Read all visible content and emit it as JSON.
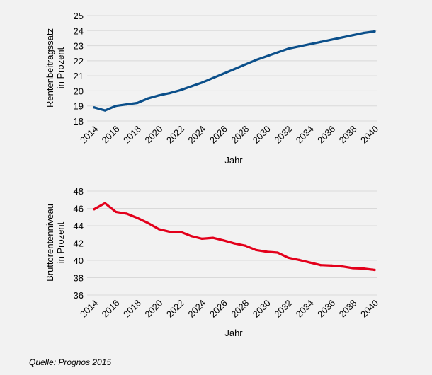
{
  "chart_data": [
    {
      "type": "line",
      "title": "",
      "xlabel": "Jahr",
      "ylabel": [
        "Rentenbeitragssatz",
        "in Prozent"
      ],
      "ylim": [
        18,
        25
      ],
      "yticks": [
        18,
        19,
        20,
        21,
        22,
        23,
        24,
        25
      ],
      "xticks": [
        2014,
        2016,
        2018,
        2020,
        2022,
        2024,
        2026,
        2028,
        2030,
        2032,
        2034,
        2036,
        2038,
        2040
      ],
      "grid": true,
      "color": "#0b4f8a",
      "x": [
        2014,
        2015,
        2016,
        2017,
        2018,
        2019,
        2020,
        2021,
        2022,
        2023,
        2024,
        2025,
        2026,
        2027,
        2028,
        2029,
        2030,
        2031,
        2032,
        2033,
        2034,
        2035,
        2036,
        2037,
        2038,
        2039,
        2040
      ],
      "values": [
        18.9,
        18.7,
        19.0,
        19.1,
        19.2,
        19.5,
        19.7,
        19.85,
        20.05,
        20.3,
        20.55,
        20.85,
        21.15,
        21.45,
        21.75,
        22.05,
        22.3,
        22.55,
        22.8,
        22.95,
        23.1,
        23.25,
        23.4,
        23.55,
        23.7,
        23.85,
        23.95
      ]
    },
    {
      "type": "line",
      "title": "",
      "xlabel": "Jahr",
      "ylabel": [
        "Bruttorentenniveau",
        "in Prozent"
      ],
      "ylim": [
        36,
        48
      ],
      "yticks": [
        36,
        38,
        40,
        42,
        44,
        46,
        48
      ],
      "xticks": [
        2014,
        2016,
        2018,
        2020,
        2022,
        2024,
        2026,
        2028,
        2030,
        2032,
        2034,
        2036,
        2038,
        2040
      ],
      "grid": true,
      "color": "#e3001b",
      "x": [
        2014,
        2015,
        2016,
        2017,
        2018,
        2019,
        2020,
        2021,
        2022,
        2023,
        2024,
        2025,
        2026,
        2027,
        2028,
        2029,
        2030,
        2031,
        2032,
        2033,
        2034,
        2035,
        2036,
        2037,
        2038,
        2039,
        2040
      ],
      "values": [
        45.9,
        46.6,
        45.6,
        45.4,
        44.9,
        44.3,
        43.6,
        43.3,
        43.3,
        42.8,
        42.5,
        42.6,
        42.3,
        41.95,
        41.7,
        41.2,
        41.0,
        40.9,
        40.3,
        40.05,
        39.75,
        39.45,
        39.4,
        39.3,
        39.1,
        39.05,
        38.9
      ]
    }
  ],
  "source": "Quelle: Prognos 2015"
}
